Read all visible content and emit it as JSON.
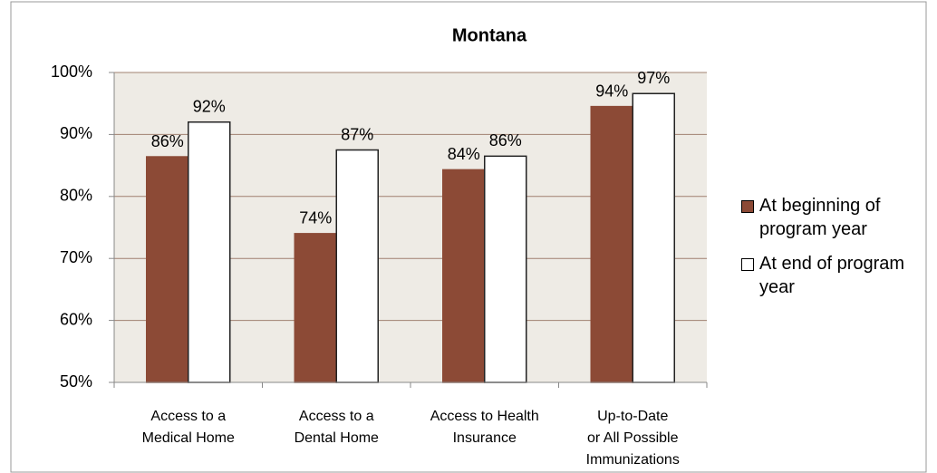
{
  "chart_data": {
    "type": "bar",
    "title": "Montana",
    "categories": [
      [
        "Access to a",
        "Medical Home"
      ],
      [
        "Access to a",
        "Dental Home"
      ],
      [
        "Access to Health",
        "Insurance"
      ],
      [
        "Up-to-Date",
        "or All Possible",
        "Immunizations"
      ]
    ],
    "series": [
      {
        "name": "At beginning of program year",
        "color": "#8c4a36",
        "values": [
          86.4,
          74,
          84.3,
          94.5
        ],
        "value_labels": [
          "86%",
          "74%",
          "84%",
          "94%"
        ]
      },
      {
        "name": "At end of program year",
        "color": "#ffffff",
        "values": [
          92,
          87.5,
          86.5,
          96.6
        ],
        "value_labels": [
          "92%",
          "87%",
          "86%",
          "97%"
        ]
      }
    ],
    "ylim": [
      50,
      100
    ],
    "yticks": [
      {
        "value": 50,
        "label": "50%"
      },
      {
        "value": 60,
        "label": "60%"
      },
      {
        "value": 70,
        "label": "70%"
      },
      {
        "value": 80,
        "label": "80%"
      },
      {
        "value": 90,
        "label": "90%"
      },
      {
        "value": 100,
        "label": "100%"
      }
    ],
    "grid": true,
    "legend": "right"
  }
}
